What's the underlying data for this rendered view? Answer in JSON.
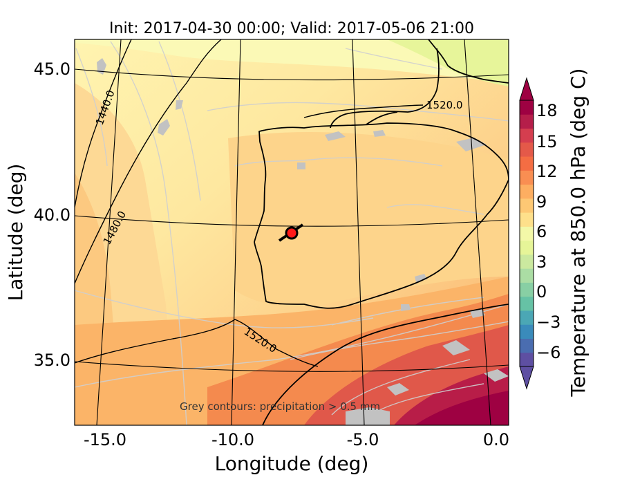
{
  "title": "Init: 2017-04-30 00:00; Valid: 2017-05-06 21:00",
  "xlabel": "Longitude (deg)",
  "ylabel": "Latitude (deg)",
  "x_ticks": [
    "-15.0",
    "-10.0",
    "-5.0",
    "0.0"
  ],
  "y_ticks": [
    "45.0",
    "40.0",
    "35.0"
  ],
  "contour_labels": [
    "1440.0",
    "1480.0",
    "1520.0",
    "1520.0"
  ],
  "annotation": "Grey contours: precipitation > 0.5 mm",
  "marker_icon": "location-marker-icon",
  "colorbar": {
    "label": "Temperature at 850.0 hPa (deg C)",
    "ticks": [
      "18",
      "15",
      "12",
      "9",
      "6",
      "3",
      "0",
      "−3",
      "−6"
    ],
    "colors": [
      "#5e4fa2",
      "#4a6db0",
      "#3a8bbb",
      "#4ba7b5",
      "#66c2a5",
      "#88cfa4",
      "#abdda4",
      "#cbe99f",
      "#e6f598",
      "#f3f8a8",
      "#fee08b",
      "#fdc874",
      "#fdae61",
      "#f98e52",
      "#f46d43",
      "#e45949",
      "#d53e4f",
      "#b51e4a",
      "#9e0142"
    ],
    "extend": "both"
  }
}
